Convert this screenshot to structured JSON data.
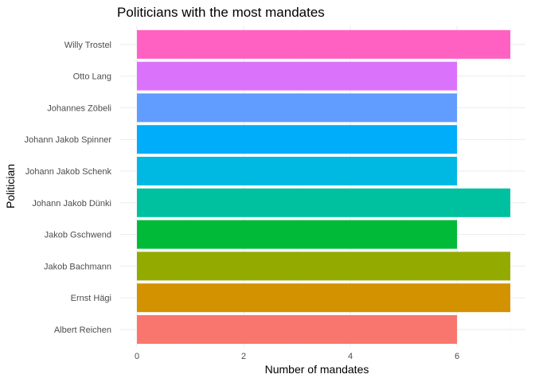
{
  "chart_data": {
    "type": "bar",
    "orientation": "horizontal",
    "title": "Politicians with the most mandates",
    "xlabel": "Number of mandates",
    "ylabel": "Politician",
    "categories": [
      "Albert Reichen",
      "Ernst Hägi",
      "Jakob Bachmann",
      "Jakob Gschwend",
      "Johann Jakob Dünki",
      "Johann Jakob Schenk",
      "Johann Jakob Spinner",
      "Johannes Zöbeli",
      "Otto Lang",
      "Willy Trostel"
    ],
    "values": [
      6,
      7,
      7,
      6,
      7,
      6,
      6,
      6,
      6,
      7
    ],
    "colors": [
      "#F8766D",
      "#D39200",
      "#93AA00",
      "#00BA38",
      "#00C19F",
      "#00B9E3",
      "#00ADFA",
      "#619CFF",
      "#DB72FB",
      "#FF61C3"
    ],
    "xlim": [
      0,
      7
    ],
    "xticks": [
      0,
      2,
      4,
      6
    ],
    "grid": true,
    "legend": "none"
  }
}
